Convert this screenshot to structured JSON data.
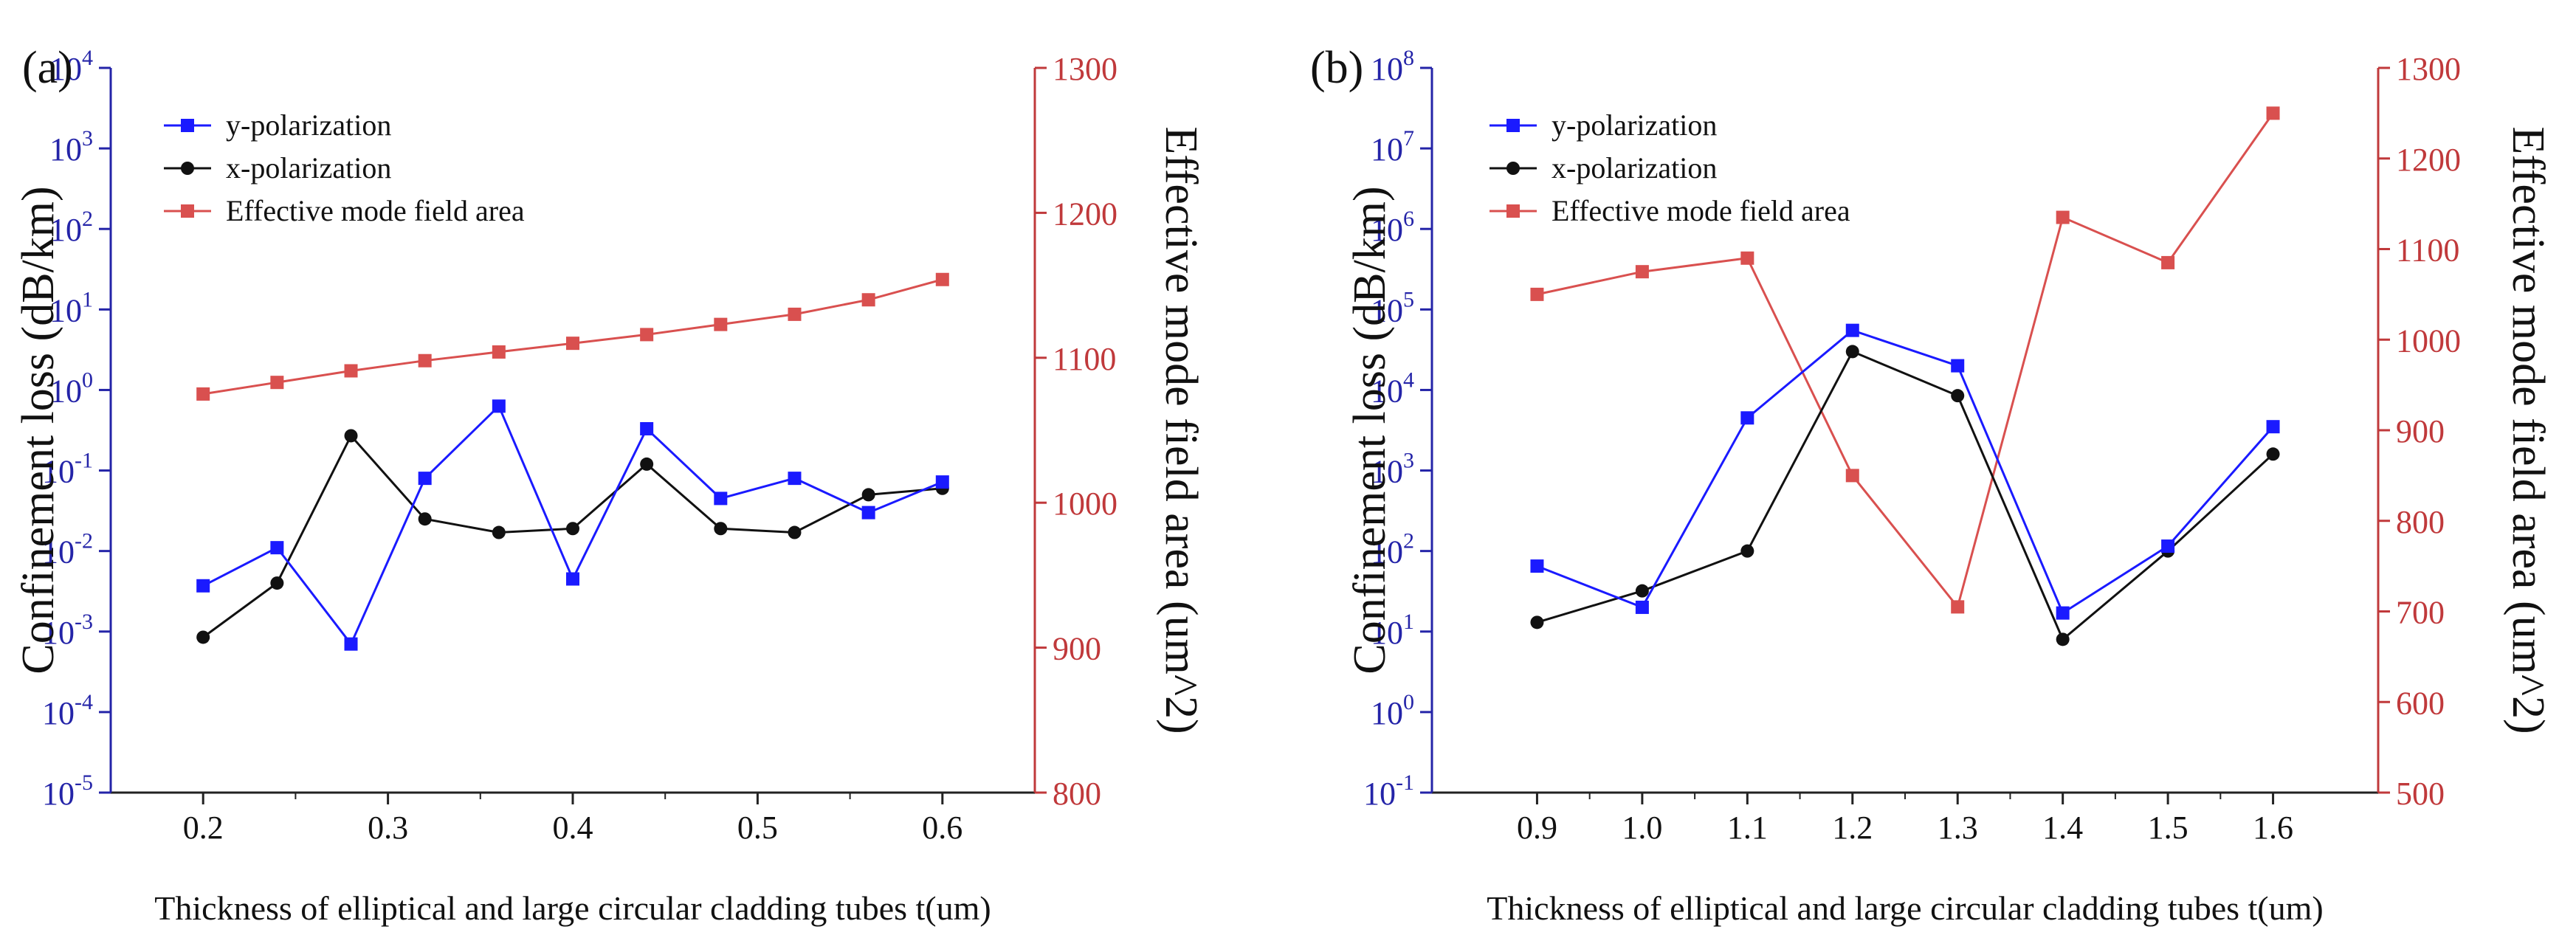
{
  "chart_data": [
    {
      "panel_label": "(a)",
      "type": "line",
      "xlabel": "Thickness of elliptical and large circular cladding tubes t(um)",
      "ylabel_left": "Confinement loss (dB/km)",
      "ylabel_right": "Effective mode field area (um^2)",
      "xlim": [
        0.15,
        0.65
      ],
      "x_ticks": [
        0.2,
        0.3,
        0.4,
        0.5,
        0.6
      ],
      "x_tick_labels": [
        "0.2",
        "0.3",
        "0.4",
        "0.5",
        "0.6"
      ],
      "y_left_scale": "log",
      "y_left_exp_range": [
        -5,
        4
      ],
      "y_left_exps": [
        -5,
        -4,
        -3,
        -2,
        -1,
        0,
        1,
        2,
        3,
        4
      ],
      "y_right_lim": [
        800,
        1300
      ],
      "y_right_ticks": [
        800,
        900,
        1000,
        1100,
        1200,
        1300
      ],
      "x": [
        0.2,
        0.24,
        0.28,
        0.32,
        0.36,
        0.4,
        0.44,
        0.48,
        0.52,
        0.56,
        0.6
      ],
      "series": [
        {
          "name": "y-polarization",
          "axis": "left",
          "color": "#1a1aff",
          "marker": "square",
          "values": [
            0.0037,
            0.011,
            0.0007,
            0.08,
            0.63,
            0.0045,
            0.33,
            0.045,
            0.08,
            0.03,
            0.072
          ]
        },
        {
          "name": "x-polarization",
          "axis": "left",
          "color": "#111111",
          "marker": "circle",
          "values": [
            0.00085,
            0.004,
            0.27,
            0.025,
            0.017,
            0.019,
            0.12,
            0.019,
            0.017,
            0.05,
            0.06
          ]
        },
        {
          "name": "Effective mode field area",
          "axis": "right",
          "color": "#d9504f",
          "marker": "square",
          "values": [
            1075,
            1083,
            1091,
            1098,
            1104,
            1110,
            1116,
            1123,
            1130,
            1140,
            1154
          ]
        }
      ]
    },
    {
      "panel_label": "(b)",
      "type": "line",
      "xlabel": "Thickness of elliptical and large circular cladding tubes t(um)",
      "ylabel_left": "Confinement loss (dB/km)",
      "ylabel_right": "Effective mode field area (um^2)",
      "xlim": [
        0.8,
        1.7
      ],
      "x_ticks": [
        0.9,
        1.0,
        1.1,
        1.2,
        1.3,
        1.4,
        1.5,
        1.6
      ],
      "x_tick_labels": [
        "0.9",
        "1.0",
        "1.1",
        "1.2",
        "1.3",
        "1.4",
        "1.5",
        "1.6"
      ],
      "y_left_scale": "log",
      "y_left_exp_range": [
        -1,
        8
      ],
      "y_left_exps": [
        -1,
        0,
        1,
        2,
        3,
        4,
        5,
        6,
        7,
        8
      ],
      "y_right_lim": [
        500,
        1300
      ],
      "y_right_ticks": [
        500,
        600,
        700,
        800,
        900,
        1000,
        1100,
        1200,
        1300
      ],
      "x": [
        0.9,
        1.0,
        1.1,
        1.2,
        1.3,
        1.4,
        1.5,
        1.6
      ],
      "series": [
        {
          "name": "y-polarization",
          "axis": "left",
          "color": "#1a1aff",
          "marker": "square",
          "values": [
            65,
            20,
            4500,
            55000,
            20000,
            17,
            115,
            3500
          ]
        },
        {
          "name": "x-polarization",
          "axis": "left",
          "color": "#111111",
          "marker": "circle",
          "values": [
            13,
            32,
            100,
            30000,
            8500,
            8,
            100,
            1600
          ]
        },
        {
          "name": "Effective mode field area",
          "axis": "right",
          "color": "#d9504f",
          "marker": "square",
          "values": [
            1050,
            1075,
            1090,
            850,
            705,
            1135,
            1085,
            1250
          ]
        }
      ]
    }
  ]
}
